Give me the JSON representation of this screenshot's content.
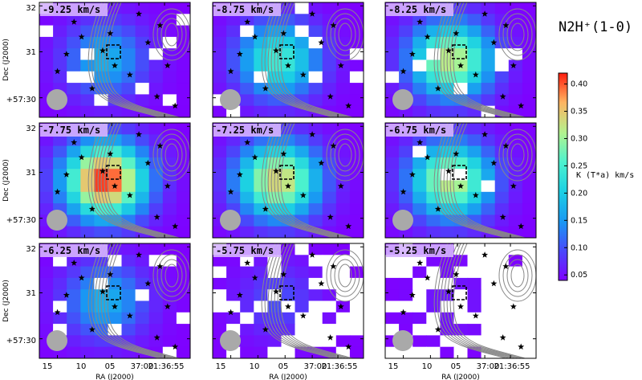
{
  "title": "N2H⁺(1-0)",
  "chart_data": {
    "type": "heatmap",
    "panels": [
      {
        "label": "-9.25 km/s"
      },
      {
        "label": "-8.75 km/s"
      },
      {
        "label": "-8.25 km/s"
      },
      {
        "label": "-7.75 km/s"
      },
      {
        "label": "-7.25 km/s"
      },
      {
        "label": "-6.75 km/s"
      },
      {
        "label": "-6.25 km/s"
      },
      {
        "label": "-5.75 km/s"
      },
      {
        "label": "-5.25 km/s"
      }
    ],
    "xlabel": "RA (J2000)",
    "ylabel": "Dec (J2000)",
    "xticks": [
      "15",
      "10",
      "05",
      "37:00",
      "21:36:55"
    ],
    "yticks": [
      "32",
      "31",
      "+57:30"
    ],
    "colorbar": {
      "label": "K (T*a) km/s",
      "ticks": [
        0.05,
        0.1,
        0.15,
        0.2,
        0.25,
        0.3,
        0.35,
        0.4
      ],
      "range": [
        0.04,
        0.42
      ],
      "colormap": "rainbow"
    }
  },
  "colors": {
    "background_level": "#7f00ff",
    "contour": "#888888",
    "beam": "#a9a9a9",
    "star": "#000000"
  },
  "icons": {
    "beam": "beam-circle-icon",
    "star": "star-icon",
    "box": "dashed-box-icon"
  }
}
